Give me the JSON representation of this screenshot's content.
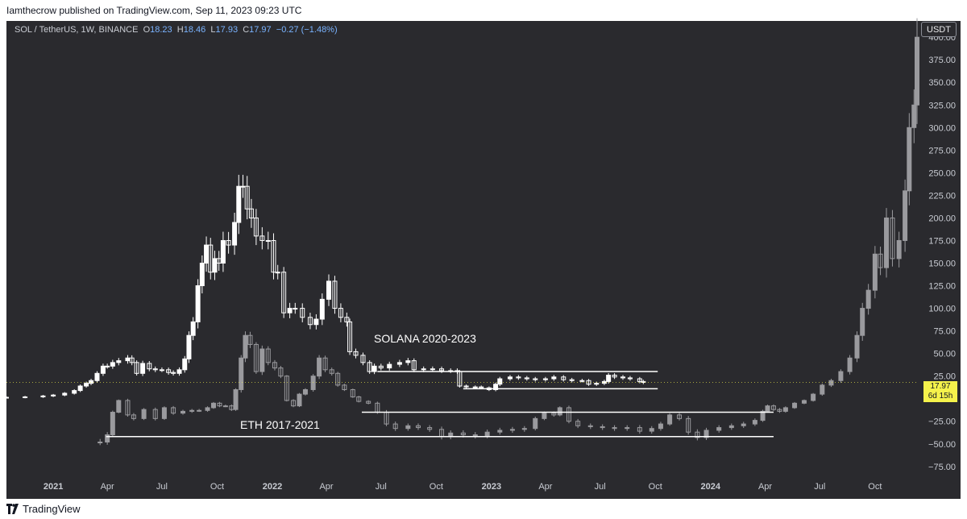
{
  "header": {
    "published_text": "Iamthecrow published on TradingView.com, Sep 11, 2023 09:23 UTC"
  },
  "legend": {
    "symbol": "SOL / TetherUS, 1W, BINANCE",
    "o_label": "O",
    "o_value": "18.23",
    "h_label": "H",
    "h_value": "18.46",
    "l_label": "L",
    "l_value": "17.93",
    "c_label": "C",
    "c_value": "17.97",
    "change": "−0.27 (−1.48%)"
  },
  "price_scale": {
    "currency_button": "USDT",
    "last_price": "17.97",
    "countdown": "6d 15h"
  },
  "annotations": {
    "solana_label": "SOLANA 2020-2023",
    "eth_label": "ETH 2017-2021"
  },
  "footer": {
    "brand": "TradingView"
  },
  "colors": {
    "background": "#2a2a2e",
    "candle_light": "#ffffff",
    "candle_dim": "#9a9a9e",
    "last_price": "#f5f24b",
    "change": "#7ab3ff"
  },
  "chart_data": {
    "type": "candlestick",
    "title": "",
    "ylabel": "USDT",
    "ylim": [
      -85,
      418
    ],
    "y_ticks": [
      "400.00",
      "375.00",
      "350.00",
      "325.00",
      "300.00",
      "275.00",
      "250.00",
      "225.00",
      "200.00",
      "175.00",
      "150.00",
      "125.00",
      "100.00",
      "75.00",
      "50.00",
      "25.00",
      "0.00",
      "−25.00",
      "−50.00",
      "−75.00"
    ],
    "y_tick_values": [
      400,
      375,
      350,
      325,
      300,
      275,
      250,
      225,
      200,
      175,
      150,
      125,
      100,
      75,
      50,
      25,
      0,
      -25,
      -50,
      -75
    ],
    "x_tick_labels": [
      "2021",
      "Apr",
      "Jul",
      "Oct",
      "2022",
      "Apr",
      "Jul",
      "Oct",
      "2023",
      "Apr",
      "Jul",
      "Oct",
      "2024",
      "Apr",
      "Jul",
      "Oct"
    ],
    "x_tick_dates": [
      "2021-01-01",
      "2021-04-01",
      "2021-07-01",
      "2021-10-01",
      "2022-01-01",
      "2022-04-01",
      "2022-07-01",
      "2022-10-01",
      "2023-01-01",
      "2023-04-01",
      "2023-07-01",
      "2023-10-01",
      "2024-01-01",
      "2024-04-01",
      "2024-07-01",
      "2024-10-01"
    ],
    "x_range": [
      "2020-10-15",
      "2024-12-10"
    ],
    "series": [
      {
        "name": "SOLANA 2020-2023",
        "interval": "1W",
        "points": [
          [
            "2020-10-15",
            1.5
          ],
          [
            "2020-11-15",
            2
          ],
          [
            "2020-12-15",
            3
          ],
          [
            "2021-01-01",
            4
          ],
          [
            "2021-01-20",
            6
          ],
          [
            "2021-02-05",
            9
          ],
          [
            "2021-02-15",
            14
          ],
          [
            "2021-02-25",
            17
          ],
          [
            "2021-03-05",
            20
          ],
          [
            "2021-03-15",
            28
          ],
          [
            "2021-03-25",
            36
          ],
          [
            "2021-04-01",
            36
          ],
          [
            "2021-04-10",
            40
          ],
          [
            "2021-04-20",
            42
          ],
          [
            "2021-05-05",
            45
          ],
          [
            "2021-05-12",
            40
          ],
          [
            "2021-05-20",
            28
          ],
          [
            "2021-05-30",
            39
          ],
          [
            "2021-06-10",
            33
          ],
          [
            "2021-06-20",
            32
          ],
          [
            "2021-07-01",
            32
          ],
          [
            "2021-07-12",
            29
          ],
          [
            "2021-07-20",
            28
          ],
          [
            "2021-07-30",
            32
          ],
          [
            "2021-08-08",
            44
          ],
          [
            "2021-08-15",
            70
          ],
          [
            "2021-08-22",
            85
          ],
          [
            "2021-08-30",
            125
          ],
          [
            "2021-09-06",
            150
          ],
          [
            "2021-09-13",
            170
          ],
          [
            "2021-09-20",
            140
          ],
          [
            "2021-09-27",
            155
          ],
          [
            "2021-10-04",
            150
          ],
          [
            "2021-10-11",
            175
          ],
          [
            "2021-10-20",
            170
          ],
          [
            "2021-10-30",
            195
          ],
          [
            "2021-11-06",
            235
          ],
          [
            "2021-11-13",
            235
          ],
          [
            "2021-11-20",
            210
          ],
          [
            "2021-11-27",
            200
          ],
          [
            "2021-12-05",
            180
          ],
          [
            "2021-12-15",
            175
          ],
          [
            "2021-12-25",
            175
          ],
          [
            "2022-01-03",
            140
          ],
          [
            "2022-01-10",
            140
          ],
          [
            "2022-01-20",
            95
          ],
          [
            "2022-01-30",
            100
          ],
          [
            "2022-02-08",
            100
          ],
          [
            "2022-02-20",
            90
          ],
          [
            "2022-03-05",
            82
          ],
          [
            "2022-03-15",
            88
          ],
          [
            "2022-03-25",
            110
          ],
          [
            "2022-04-05",
            130
          ],
          [
            "2022-04-15",
            100
          ],
          [
            "2022-04-25",
            90
          ],
          [
            "2022-05-05",
            85
          ],
          [
            "2022-05-10",
            52
          ],
          [
            "2022-05-20",
            48
          ],
          [
            "2022-06-01",
            40
          ],
          [
            "2022-06-12",
            30
          ],
          [
            "2022-06-20",
            36
          ],
          [
            "2022-07-01",
            34
          ],
          [
            "2022-07-15",
            38
          ],
          [
            "2022-08-01",
            40
          ],
          [
            "2022-08-15",
            42
          ],
          [
            "2022-08-25",
            32
          ],
          [
            "2022-09-10",
            33
          ],
          [
            "2022-09-25",
            33
          ],
          [
            "2022-10-10",
            31
          ],
          [
            "2022-10-25",
            31
          ],
          [
            "2022-11-05",
            30
          ],
          [
            "2022-11-09",
            14
          ],
          [
            "2022-11-20",
            13
          ],
          [
            "2022-12-05",
            13
          ],
          [
            "2022-12-15",
            12
          ],
          [
            "2022-12-28",
            10
          ],
          [
            "2023-01-08",
            16
          ],
          [
            "2023-01-15",
            22
          ],
          [
            "2023-02-01",
            24
          ],
          [
            "2023-02-15",
            23
          ],
          [
            "2023-03-01",
            22
          ],
          [
            "2023-03-15",
            21
          ],
          [
            "2023-04-01",
            22
          ],
          [
            "2023-04-15",
            24
          ],
          [
            "2023-05-01",
            21
          ],
          [
            "2023-05-15",
            20
          ],
          [
            "2023-06-01",
            20
          ],
          [
            "2023-06-12",
            16
          ],
          [
            "2023-06-25",
            17
          ],
          [
            "2023-07-08",
            19
          ],
          [
            "2023-07-15",
            26
          ],
          [
            "2023-07-25",
            24
          ],
          [
            "2023-08-08",
            23
          ],
          [
            "2023-08-20",
            22
          ],
          [
            "2023-09-05",
            19
          ],
          [
            "2023-09-11",
            18
          ]
        ]
      },
      {
        "name": "ETH 2017-2021",
        "interval": "1W",
        "points": [
          [
            "2021-03-20",
            -48
          ],
          [
            "2021-04-01",
            -40
          ],
          [
            "2021-04-10",
            -15
          ],
          [
            "2021-04-20",
            -2
          ],
          [
            "2021-05-05",
            -18
          ],
          [
            "2021-05-15",
            -22
          ],
          [
            "2021-06-01",
            -12
          ],
          [
            "2021-06-20",
            -22
          ],
          [
            "2021-07-05",
            -10
          ],
          [
            "2021-07-20",
            -16
          ],
          [
            "2021-08-05",
            -14
          ],
          [
            "2021-08-20",
            -13
          ],
          [
            "2021-09-01",
            -13
          ],
          [
            "2021-09-15",
            -10
          ],
          [
            "2021-09-25",
            -5
          ],
          [
            "2021-10-05",
            -8
          ],
          [
            "2021-10-15",
            -8
          ],
          [
            "2021-10-25",
            -12
          ],
          [
            "2021-11-01",
            10
          ],
          [
            "2021-11-10",
            45
          ],
          [
            "2021-11-17",
            70
          ],
          [
            "2021-11-25",
            60
          ],
          [
            "2021-12-05",
            30
          ],
          [
            "2021-12-15",
            55
          ],
          [
            "2021-12-25",
            40
          ],
          [
            "2022-01-05",
            34
          ],
          [
            "2022-01-15",
            25
          ],
          [
            "2022-01-25",
            -2
          ],
          [
            "2022-02-05",
            -8
          ],
          [
            "2022-02-15",
            5
          ],
          [
            "2022-02-25",
            10
          ],
          [
            "2022-03-10",
            25
          ],
          [
            "2022-03-20",
            45
          ],
          [
            "2022-03-30",
            32
          ],
          [
            "2022-04-10",
            28
          ],
          [
            "2022-04-20",
            15
          ],
          [
            "2022-05-01",
            10
          ],
          [
            "2022-05-15",
            2
          ],
          [
            "2022-05-25",
            -3
          ],
          [
            "2022-06-10",
            -5
          ],
          [
            "2022-06-25",
            -15
          ],
          [
            "2022-07-10",
            -28
          ],
          [
            "2022-07-25",
            -33
          ],
          [
            "2022-08-15",
            -30
          ],
          [
            "2022-09-01",
            -32
          ],
          [
            "2022-09-20",
            -34
          ],
          [
            "2022-10-10",
            -42
          ],
          [
            "2022-10-25",
            -38
          ],
          [
            "2022-11-15",
            -40
          ],
          [
            "2022-12-05",
            -41
          ],
          [
            "2022-12-25",
            -37
          ],
          [
            "2023-01-15",
            -35
          ],
          [
            "2023-02-05",
            -34
          ],
          [
            "2023-02-25",
            -33
          ],
          [
            "2023-03-15",
            -22
          ],
          [
            "2023-03-30",
            -16
          ],
          [
            "2023-04-15",
            -18
          ],
          [
            "2023-04-25",
            -10
          ],
          [
            "2023-05-10",
            -25
          ],
          [
            "2023-05-25",
            -30
          ],
          [
            "2023-06-15",
            -31
          ],
          [
            "2023-07-05",
            -32
          ],
          [
            "2023-07-25",
            -33
          ],
          [
            "2023-08-15",
            -32
          ],
          [
            "2023-09-05",
            -36
          ],
          [
            "2023-09-25",
            -33
          ],
          [
            "2023-10-10",
            -28
          ],
          [
            "2023-10-25",
            -18
          ],
          [
            "2023-11-10",
            -22
          ],
          [
            "2023-11-25",
            -37
          ],
          [
            "2023-12-10",
            -43
          ],
          [
            "2023-12-25",
            -35
          ],
          [
            "2024-01-15",
            -32
          ],
          [
            "2024-02-05",
            -30
          ],
          [
            "2024-02-25",
            -28
          ],
          [
            "2024-03-15",
            -24
          ],
          [
            "2024-03-28",
            -14
          ],
          [
            "2024-04-05",
            -8
          ],
          [
            "2024-04-15",
            -12
          ],
          [
            "2024-04-25",
            -14
          ],
          [
            "2024-05-05",
            -10
          ],
          [
            "2024-05-20",
            -5
          ],
          [
            "2024-06-05",
            -2
          ],
          [
            "2024-06-20",
            5
          ],
          [
            "2024-07-05",
            15
          ],
          [
            "2024-07-20",
            20
          ],
          [
            "2024-08-05",
            30
          ],
          [
            "2024-08-20",
            45
          ],
          [
            "2024-09-01",
            70
          ],
          [
            "2024-09-10",
            100
          ],
          [
            "2024-09-20",
            120
          ],
          [
            "2024-10-01",
            160
          ],
          [
            "2024-10-10",
            145
          ],
          [
            "2024-10-20",
            200
          ],
          [
            "2024-10-30",
            155
          ],
          [
            "2024-11-10",
            175
          ],
          [
            "2024-11-20",
            230
          ],
          [
            "2024-11-27",
            300
          ],
          [
            "2024-12-05",
            325
          ],
          [
            "2024-12-10",
            400
          ]
        ]
      }
    ],
    "horizontal_lines": [
      {
        "series": "SOLANA 2020-2023",
        "y": 30,
        "from": "2022-06-25",
        "to": "2023-10-05"
      },
      {
        "series": "SOLANA 2020-2023",
        "y": 11,
        "from": "2022-11-15",
        "to": "2023-10-05"
      },
      {
        "series": "ETH 2017-2021",
        "y": -15,
        "from": "2022-05-30",
        "to": "2024-04-15"
      },
      {
        "series": "ETH 2017-2021",
        "y": -42,
        "from": "2021-03-30",
        "to": "2024-04-15"
      }
    ],
    "grid": false,
    "last_price": 17.97
  }
}
